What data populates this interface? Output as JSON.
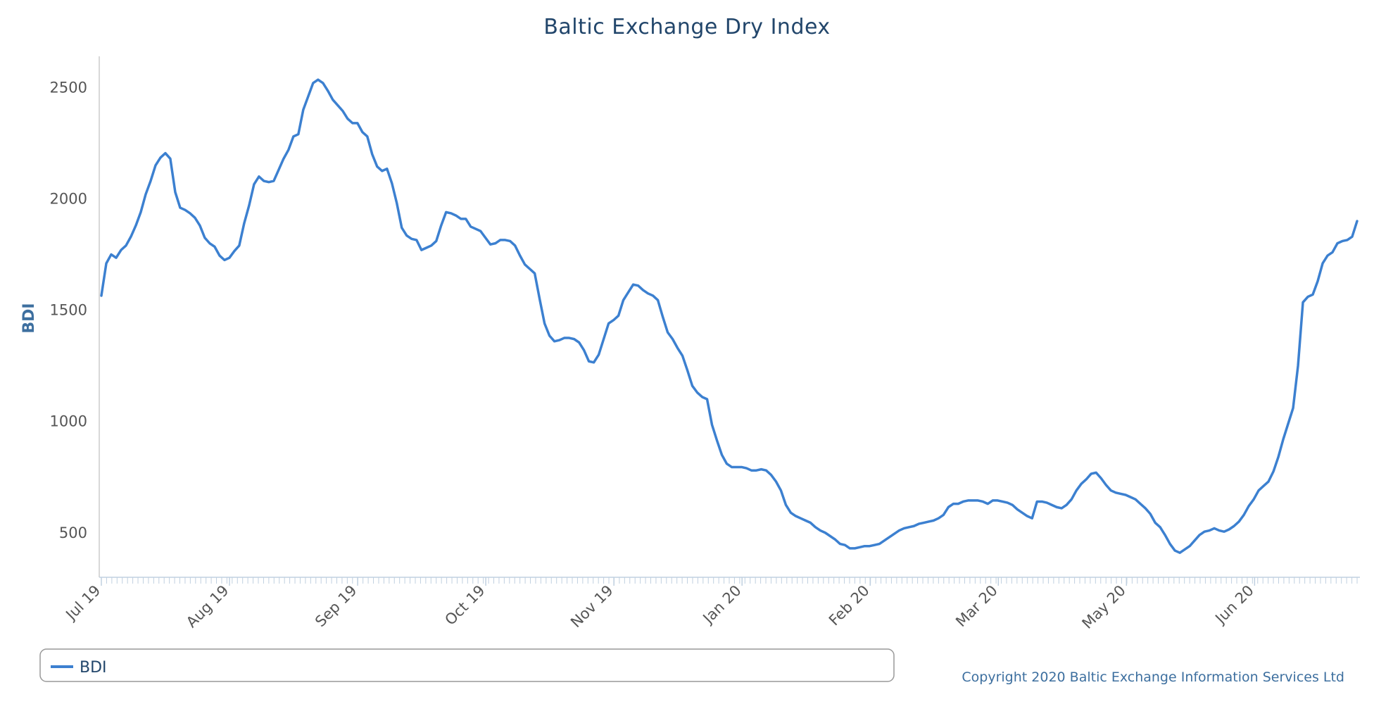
{
  "chart_data": {
    "type": "line",
    "title": "Baltic Exchange Dry Index",
    "ylabel": "BDI",
    "xlabel": "",
    "ylim": [
      300,
      2640
    ],
    "yticks": [
      500,
      1000,
      1500,
      2000,
      2500
    ],
    "xticks": [
      "Jul 19",
      "Aug 19",
      "Sep 19",
      "Oct 19",
      "Nov 19",
      "Jan 20",
      "Feb 20",
      "Mar 20",
      "May 20",
      "Jun 20"
    ],
    "grid": false,
    "legend_position": "bottom-left",
    "colors": {
      "line": "#3c80d0",
      "title": "#22466b",
      "axis_label": "#3d6f9f",
      "tick_text": "#555555",
      "axis_line": "#c0d0e0"
    },
    "series": [
      {
        "name": "BDI",
        "values": [
          1565,
          1710,
          1750,
          1735,
          1770,
          1790,
          1830,
          1880,
          1940,
          2020,
          2080,
          2150,
          2185,
          2205,
          2180,
          2030,
          1960,
          1950,
          1935,
          1915,
          1880,
          1825,
          1800,
          1785,
          1745,
          1725,
          1735,
          1765,
          1790,
          1890,
          1970,
          2065,
          2100,
          2080,
          2075,
          2080,
          2130,
          2180,
          2220,
          2280,
          2290,
          2400,
          2460,
          2520,
          2535,
          2520,
          2485,
          2445,
          2420,
          2395,
          2360,
          2340,
          2340,
          2300,
          2280,
          2200,
          2145,
          2125,
          2135,
          2070,
          1980,
          1870,
          1835,
          1820,
          1815,
          1770,
          1780,
          1790,
          1810,
          1880,
          1940,
          1935,
          1925,
          1910,
          1910,
          1875,
          1865,
          1855,
          1825,
          1795,
          1800,
          1815,
          1815,
          1810,
          1790,
          1745,
          1705,
          1685,
          1665,
          1550,
          1440,
          1385,
          1360,
          1365,
          1375,
          1375,
          1370,
          1355,
          1320,
          1270,
          1265,
          1300,
          1370,
          1440,
          1455,
          1475,
          1545,
          1580,
          1615,
          1610,
          1590,
          1575,
          1565,
          1545,
          1470,
          1400,
          1370,
          1330,
          1295,
          1230,
          1160,
          1130,
          1110,
          1100,
          985,
          915,
          850,
          810,
          795,
          795,
          795,
          790,
          780,
          780,
          785,
          780,
          760,
          730,
          690,
          625,
          590,
          575,
          565,
          555,
          545,
          525,
          510,
          500,
          485,
          470,
          450,
          445,
          430,
          430,
          435,
          440,
          440,
          445,
          450,
          465,
          480,
          495,
          510,
          520,
          525,
          530,
          540,
          545,
          550,
          555,
          565,
          580,
          615,
          630,
          630,
          640,
          645,
          645,
          645,
          640,
          630,
          645,
          645,
          640,
          635,
          625,
          605,
          590,
          575,
          565,
          640,
          640,
          635,
          625,
          615,
          610,
          625,
          650,
          690,
          720,
          740,
          765,
          770,
          745,
          715,
          690,
          680,
          675,
          670,
          660,
          650,
          630,
          610,
          585,
          545,
          525,
          490,
          450,
          420,
          410,
          425,
          440,
          465,
          490,
          505,
          510,
          520,
          510,
          505,
          515,
          530,
          550,
          580,
          620,
          650,
          690,
          710,
          730,
          775,
          840,
          920,
          990,
          1060,
          1250,
          1535,
          1560,
          1570,
          1630,
          1710,
          1745,
          1760,
          1800,
          1810,
          1815,
          1830,
          1900
        ]
      }
    ]
  },
  "legend": {
    "items": [
      {
        "label": "BDI"
      }
    ]
  },
  "footer": {
    "copyright": "Copyright 2020 Baltic Exchange Information Services Ltd"
  }
}
